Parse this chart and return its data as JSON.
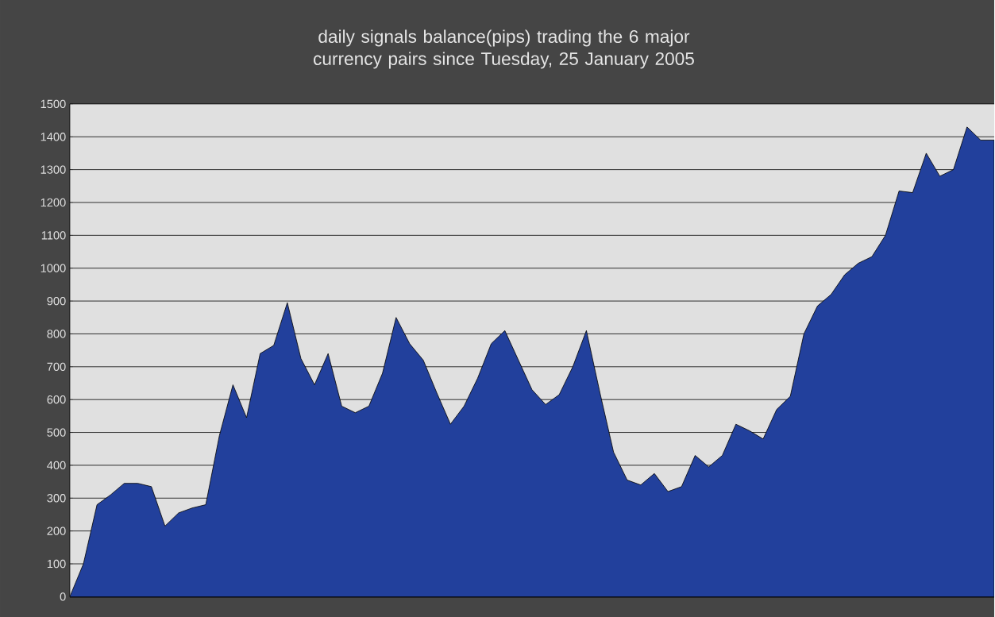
{
  "chart_data": {
    "type": "area",
    "title": "daily signals balance(pips) trading the 6 major currency pairs since Tuesday, 25 January 2005",
    "categories": [
      null,
      null,
      null,
      null,
      null,
      null,
      null,
      null,
      null,
      null,
      null,
      null,
      null,
      null,
      null,
      null,
      null,
      null,
      null,
      null,
      null,
      null,
      null,
      null,
      null,
      null,
      null,
      null,
      null,
      null,
      null,
      null,
      null,
      null,
      null,
      null,
      null,
      null,
      null,
      null,
      null,
      null,
      null,
      null,
      null,
      null,
      null,
      null,
      null,
      null,
      null,
      null,
      null,
      null,
      null,
      null,
      null,
      null,
      null,
      null,
      null,
      null,
      null,
      null,
      null,
      null,
      null,
      null,
      null
    ],
    "values": [
      0,
      100,
      280,
      310,
      345,
      345,
      335,
      215,
      255,
      270,
      280,
      490,
      645,
      545,
      740,
      765,
      895,
      725,
      645,
      740,
      580,
      560,
      580,
      680,
      850,
      770,
      720,
      620,
      525,
      580,
      665,
      770,
      810,
      720,
      630,
      585,
      615,
      700,
      810,
      620,
      440,
      355,
      340,
      375,
      320,
      335,
      430,
      395,
      430,
      525,
      505,
      480,
      570,
      610,
      800,
      885,
      920,
      980,
      1015,
      1035,
      1100,
      1235,
      1230,
      1350,
      1280,
      1300,
      1430,
      1390,
      1390
    ],
    "color": "#22409c",
    "ylim": [
      0,
      1500
    ],
    "yticks": [
      0,
      100,
      200,
      300,
      400,
      500,
      600,
      700,
      800,
      900,
      1000,
      1100,
      1200,
      1300,
      1400,
      1500
    ],
    "grid": "y"
  }
}
